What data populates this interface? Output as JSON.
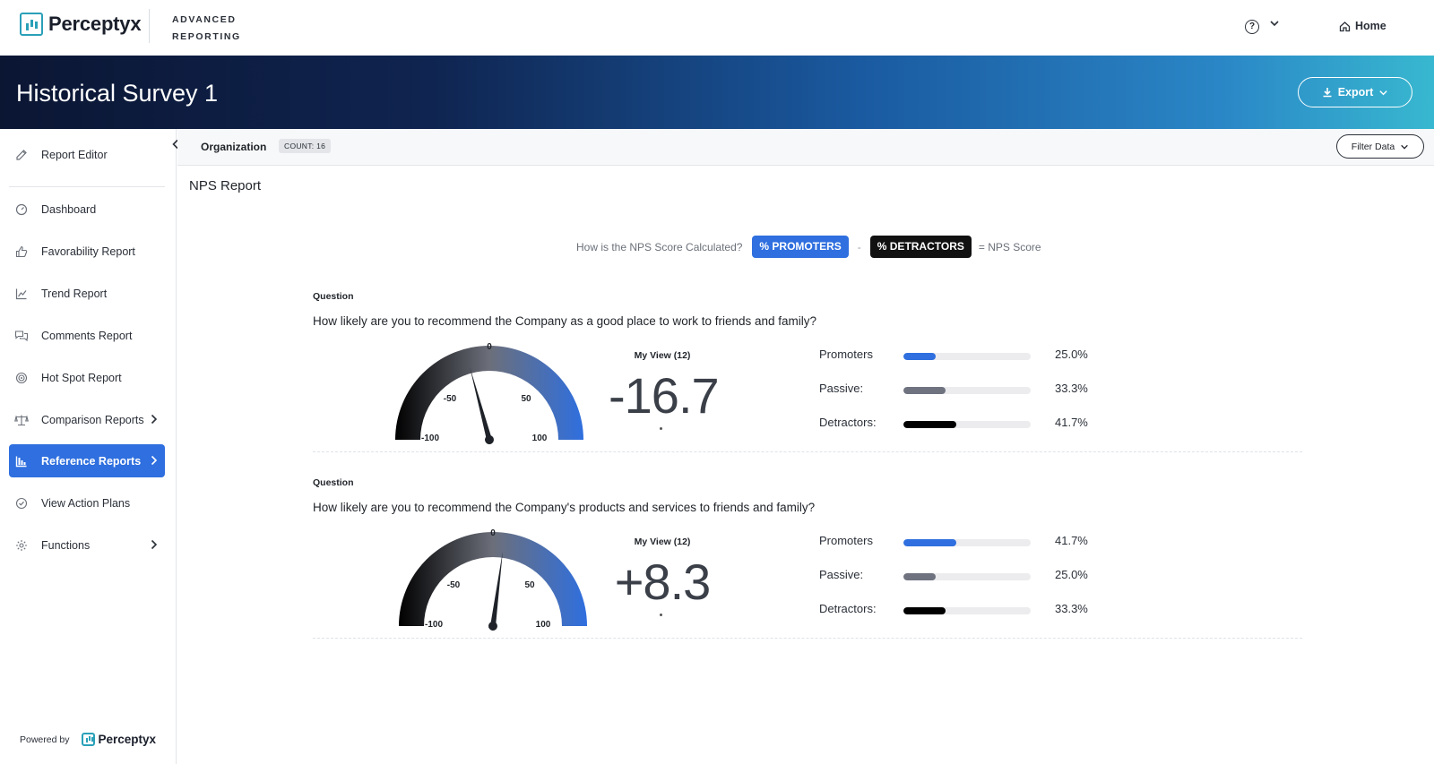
{
  "header": {
    "brand": "Perceptyx",
    "product_line1": "ADVANCED",
    "product_line2": "REPORTING",
    "help_icon": "question-circle-icon",
    "home_label": "Home"
  },
  "banner": {
    "title": "Historical Survey 1",
    "export_label": "Export"
  },
  "sidebar": {
    "items": [
      {
        "label": "Report Editor",
        "icon": "edit-icon"
      },
      {
        "label": "Dashboard",
        "icon": "gauge-icon"
      },
      {
        "label": "Favorability Report",
        "icon": "thumbs-up-icon"
      },
      {
        "label": "Trend Report",
        "icon": "trend-icon"
      },
      {
        "label": "Comments Report",
        "icon": "comments-icon"
      },
      {
        "label": "Hot Spot Report",
        "icon": "target-icon"
      },
      {
        "label": "Comparison Reports",
        "icon": "scale-icon"
      },
      {
        "label": "Reference Reports",
        "icon": "bar-chart-icon"
      },
      {
        "label": "View Action Plans",
        "icon": "check-circle-icon"
      },
      {
        "label": "Functions",
        "icon": "gear-icon"
      }
    ],
    "powered_by": "Powered by",
    "powered_brand": "Perceptyx"
  },
  "filterbar": {
    "org_label": "Organization",
    "count_label": "COUNT: 16",
    "filter_label": "Filter Data"
  },
  "report": {
    "title": "NPS Report",
    "calc_question": "How is the NPS Score Calculated?",
    "promoters_pill": "% PROMOTERS",
    "minus": "-",
    "detractors_pill": "% DETRACTORS",
    "equals_text": "= NPS Score"
  },
  "questions": [
    {
      "label": "Question",
      "text": "How likely are you to recommend the Company as a good place to work to friends and family?",
      "my_view": "My View (12)",
      "score_text": "-16.7",
      "score_value": -16.7,
      "gauge_ticks": {
        "zero": "0",
        "neg50": "-50",
        "pos50": "50",
        "neg100": "-100",
        "pos100": "100"
      },
      "rows": [
        {
          "label": "Promoters",
          "pct_text": "25.0%",
          "pct": 25.0,
          "color": "#2f6fdf"
        },
        {
          "label": "Passive:",
          "pct_text": "33.3%",
          "pct": 33.3,
          "color": "#6f7380"
        },
        {
          "label": "Detractors:",
          "pct_text": "41.7%",
          "pct": 41.7,
          "color": "#000000"
        }
      ]
    },
    {
      "label": "Question",
      "text": "How likely are you to recommend the Company's products and services to friends and family?",
      "my_view": "My View (12)",
      "score_text": "+8.3",
      "score_value": 8.3,
      "gauge_ticks": {
        "zero": "0",
        "neg50": "-50",
        "pos50": "50",
        "neg100": "-100",
        "pos100": "100"
      },
      "rows": [
        {
          "label": "Promoters",
          "pct_text": "41.7%",
          "pct": 41.7,
          "color": "#2f6fdf"
        },
        {
          "label": "Passive:",
          "pct_text": "25.0%",
          "pct": 25.0,
          "color": "#6f7380"
        },
        {
          "label": "Detractors:",
          "pct_text": "33.3%",
          "pct": 33.3,
          "color": "#000000"
        }
      ]
    }
  ],
  "colors": {
    "accent": "#2f6fdf",
    "passive": "#6f7380",
    "detractor": "#000000"
  }
}
